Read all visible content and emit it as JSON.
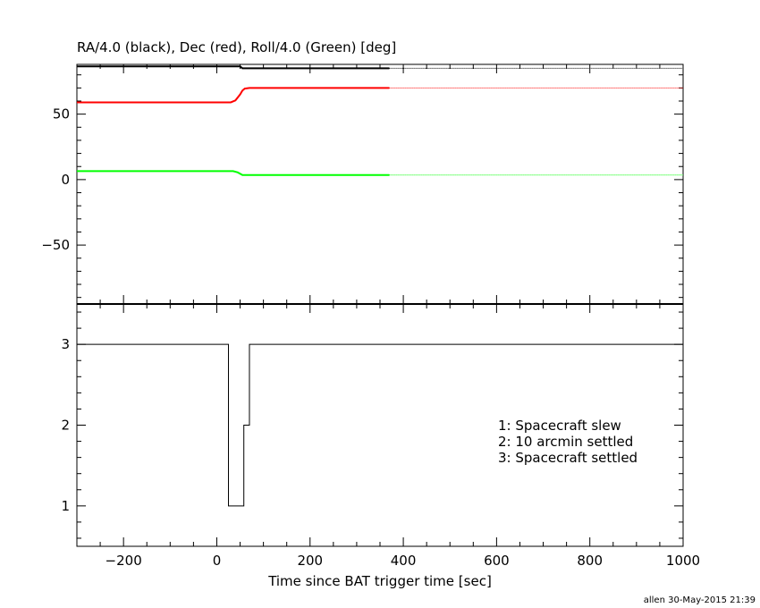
{
  "chart_data": [
    {
      "type": "line",
      "title": "RA/4.0 (black), Dec (red), Roll/4.0 (Green) [deg]",
      "xlim": [
        -300,
        1000
      ],
      "ylim": [
        -95,
        88
      ],
      "yticks": [
        -50,
        0,
        50
      ],
      "ytick_labels": [
        "−50",
        "0",
        "50"
      ],
      "grid": false,
      "series": [
        {
          "color": "#000000",
          "solid": {
            "x": [
              -300,
              50,
              55,
              370
            ],
            "y": [
              86.5,
              86.5,
              85.0,
              85.0
            ]
          },
          "dotted": {
            "x": [
              370,
              1000
            ],
            "y": [
              85.0,
              85.0
            ]
          }
        },
        {
          "color": "#ff0000",
          "solid": {
            "x": [
              -300,
              30,
              40,
              50,
              55,
              60,
              70,
              370
            ],
            "y": [
              59.0,
              59.0,
              60.5,
              65.0,
              68.0,
              69.5,
              70.0,
              70.0
            ]
          },
          "dotted": {
            "x": [
              370,
              1000
            ],
            "y": [
              70.0,
              70.0
            ]
          }
        },
        {
          "color": "#00ff00",
          "solid": {
            "x": [
              -300,
              35,
              45,
              55,
              370
            ],
            "y": [
              6.5,
              6.5,
              5.5,
              3.5,
              3.5
            ]
          },
          "dotted": {
            "x": [
              370,
              1000
            ],
            "y": [
              3.5,
              3.5
            ]
          }
        }
      ]
    },
    {
      "type": "line",
      "xlabel": "Time since BAT trigger time [sec]",
      "xlim": [
        -300,
        1000
      ],
      "ylim": [
        0.5,
        3.5
      ],
      "xticks": [
        -200,
        0,
        200,
        400,
        600,
        800,
        1000
      ],
      "xtick_labels": [
        "−200",
        "0",
        "200",
        "400",
        "600",
        "800",
        "1000"
      ],
      "yticks": [
        1,
        2,
        3
      ],
      "ytick_labels": [
        "1",
        "2",
        "3"
      ],
      "series": [
        {
          "color": "#000000",
          "step": true,
          "x": [
            -300,
            25,
            25,
            58,
            58,
            70,
            70,
            1000
          ],
          "y": [
            3,
            3,
            1,
            1,
            2,
            2,
            3,
            3
          ]
        }
      ],
      "annotations": [
        "1: Spacecraft slew",
        "2: 10 arcmin settled",
        "3: Spacecraft settled"
      ]
    }
  ],
  "footer": "allen 30-May-2015 21:39"
}
